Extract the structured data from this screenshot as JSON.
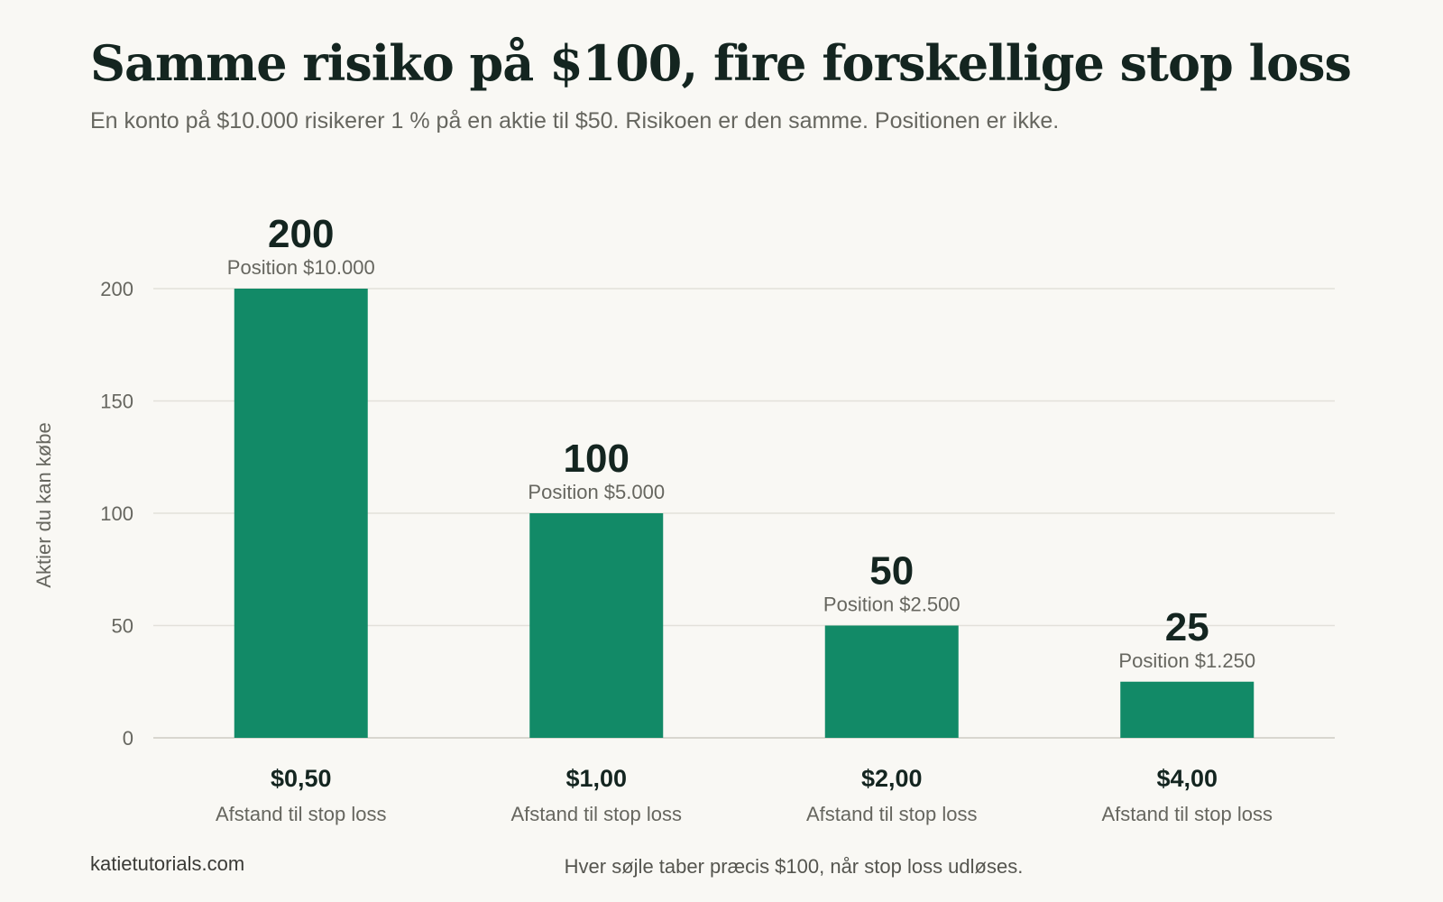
{
  "header": {
    "title": "Samme risiko på $100, fire forskellige stop loss",
    "subtitle": "En konto på $10.000 risikerer 1 % på en aktie til $50. Risikoen er den samme. Positionen er ikke."
  },
  "footer": {
    "source": "katietutorials.com",
    "note": "Hver søjle taber præcis $100, når stop loss udløses."
  },
  "chart_data": {
    "type": "bar",
    "categories": [
      "$0,50",
      "$1,00",
      "$2,00",
      "$4,00"
    ],
    "category_sublabels": [
      "Afstand til stop loss",
      "Afstand til stop loss",
      "Afstand til stop loss",
      "Afstand til stop loss"
    ],
    "values": [
      200,
      100,
      50,
      25
    ],
    "value_labels": [
      "200",
      "100",
      "50",
      "25"
    ],
    "position_labels": [
      "Position $10.000",
      "Position $5.000",
      "Position $2.500",
      "Position $1.250"
    ],
    "ylabel": "Aktier du kan købe",
    "ylim": [
      0,
      200
    ],
    "yticks": [
      0,
      50,
      100,
      150,
      200
    ],
    "grid": true,
    "colors": {
      "bar": "#128a67",
      "grid": "#e3e1da",
      "axis": "#d8d6cf",
      "tick_text": "#66665f",
      "value_text": "#142520"
    }
  }
}
